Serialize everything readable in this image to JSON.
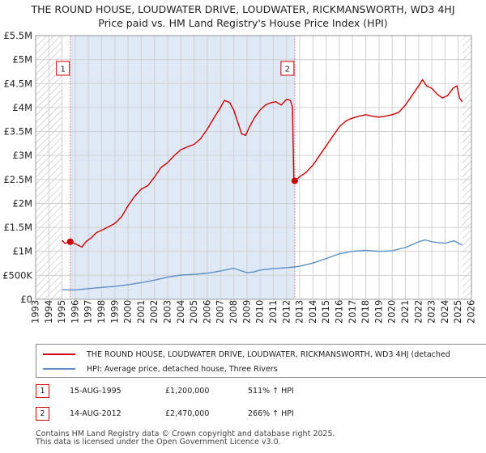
{
  "title_line1": "THE ROUND HOUSE, LOUDWATER DRIVE, LOUDWATER, RICKMANSWORTH, WD3 4HJ",
  "title_line2": "Price paid vs. HM Land Registry's House Price Index (HPI)",
  "colors": {
    "property": "#cc0000",
    "hpi": "#5b8fc8",
    "shade": "#dfe8f5",
    "hatch": "#b0b0b0",
    "marker_line": "#dd6666",
    "grid": "#d0d0d0"
  },
  "chart_data": {
    "type": "line",
    "title": "Price paid vs. HM Land Registry's House Price Index (HPI)",
    "xlim": [
      1993,
      2026
    ],
    "ylim": [
      0,
      5500000
    ],
    "x_ticks": [
      1993,
      1994,
      1995,
      1996,
      1997,
      1998,
      1999,
      2000,
      2001,
      2002,
      2003,
      2004,
      2005,
      2006,
      2007,
      2008,
      2009,
      2010,
      2011,
      2012,
      2013,
      2014,
      2015,
      2016,
      2017,
      2018,
      2019,
      2020,
      2021,
      2022,
      2023,
      2024,
      2025,
      2026
    ],
    "y_ticks": [
      {
        "value": 0,
        "label": "£0"
      },
      {
        "value": 500000,
        "label": "£500K"
      },
      {
        "value": 1000000,
        "label": "£1M"
      },
      {
        "value": 1500000,
        "label": "£1.5M"
      },
      {
        "value": 2000000,
        "label": "£2M"
      },
      {
        "value": 2500000,
        "label": "£2.5M"
      },
      {
        "value": 3000000,
        "label": "£3M"
      },
      {
        "value": 3500000,
        "label": "£3.5M"
      },
      {
        "value": 4000000,
        "label": "£4M"
      },
      {
        "value": 4500000,
        "label": "£4.5M"
      },
      {
        "value": 5000000,
        "label": "£5M"
      },
      {
        "value": 5500000,
        "label": "£5.5M"
      }
    ],
    "hatch_before": 1995.0,
    "hatch_after": 2025.3,
    "shaded_range": [
      1995.62,
      2012.62
    ],
    "series": [
      {
        "name": "THE ROUND HOUSE, LOUDWATER DRIVE, LOUDWATER, RICKMANSWORTH, WD3 4HJ (detached",
        "color_key": "property",
        "points": [
          [
            1995.0,
            1230000
          ],
          [
            1995.2,
            1170000
          ],
          [
            1995.4,
            1180000
          ],
          [
            1995.62,
            1200000
          ],
          [
            1995.9,
            1170000
          ],
          [
            1996.2,
            1130000
          ],
          [
            1996.5,
            1090000
          ],
          [
            1996.8,
            1200000
          ],
          [
            1997.2,
            1280000
          ],
          [
            1997.6,
            1390000
          ],
          [
            1998.0,
            1440000
          ],
          [
            1998.5,
            1510000
          ],
          [
            1999.0,
            1580000
          ],
          [
            1999.5,
            1720000
          ],
          [
            2000.0,
            1950000
          ],
          [
            2000.5,
            2150000
          ],
          [
            2001.0,
            2300000
          ],
          [
            2001.5,
            2370000
          ],
          [
            2002.0,
            2550000
          ],
          [
            2002.5,
            2750000
          ],
          [
            2003.0,
            2850000
          ],
          [
            2003.5,
            3000000
          ],
          [
            2004.0,
            3120000
          ],
          [
            2004.5,
            3180000
          ],
          [
            2005.0,
            3230000
          ],
          [
            2005.5,
            3350000
          ],
          [
            2006.0,
            3550000
          ],
          [
            2006.5,
            3780000
          ],
          [
            2007.0,
            4000000
          ],
          [
            2007.3,
            4150000
          ],
          [
            2007.7,
            4100000
          ],
          [
            2008.0,
            3950000
          ],
          [
            2008.3,
            3700000
          ],
          [
            2008.6,
            3450000
          ],
          [
            2008.9,
            3420000
          ],
          [
            2009.2,
            3600000
          ],
          [
            2009.6,
            3800000
          ],
          [
            2010.0,
            3950000
          ],
          [
            2010.4,
            4050000
          ],
          [
            2010.8,
            4100000
          ],
          [
            2011.2,
            4120000
          ],
          [
            2011.6,
            4050000
          ],
          [
            2012.0,
            4170000
          ],
          [
            2012.3,
            4150000
          ],
          [
            2012.45,
            4000000
          ],
          [
            2012.55,
            2550000
          ],
          [
            2012.62,
            2470000
          ],
          [
            2013.0,
            2560000
          ],
          [
            2013.5,
            2650000
          ],
          [
            2014.0,
            2800000
          ],
          [
            2014.5,
            3000000
          ],
          [
            2015.0,
            3200000
          ],
          [
            2015.5,
            3400000
          ],
          [
            2016.0,
            3600000
          ],
          [
            2016.5,
            3720000
          ],
          [
            2017.0,
            3780000
          ],
          [
            2017.5,
            3820000
          ],
          [
            2018.0,
            3850000
          ],
          [
            2018.5,
            3820000
          ],
          [
            2019.0,
            3800000
          ],
          [
            2019.5,
            3820000
          ],
          [
            2020.0,
            3850000
          ],
          [
            2020.5,
            3900000
          ],
          [
            2021.0,
            4050000
          ],
          [
            2021.5,
            4250000
          ],
          [
            2022.0,
            4450000
          ],
          [
            2022.3,
            4580000
          ],
          [
            2022.6,
            4450000
          ],
          [
            2023.0,
            4400000
          ],
          [
            2023.4,
            4280000
          ],
          [
            2023.8,
            4200000
          ],
          [
            2024.2,
            4250000
          ],
          [
            2024.6,
            4400000
          ],
          [
            2024.9,
            4450000
          ],
          [
            2025.1,
            4200000
          ],
          [
            2025.3,
            4120000
          ]
        ]
      },
      {
        "name": "HPI: Average price, detached house, Three Rivers",
        "color_key": "hpi",
        "points": [
          [
            1995.0,
            198000
          ],
          [
            1996.0,
            195000
          ],
          [
            1997.0,
            222000
          ],
          [
            1998.0,
            248000
          ],
          [
            1999.0,
            268000
          ],
          [
            2000.0,
            305000
          ],
          [
            2001.0,
            348000
          ],
          [
            2002.0,
            400000
          ],
          [
            2003.0,
            462000
          ],
          [
            2004.0,
            505000
          ],
          [
            2005.0,
            520000
          ],
          [
            2006.0,
            543000
          ],
          [
            2007.0,
            590000
          ],
          [
            2008.0,
            648000
          ],
          [
            2008.5,
            600000
          ],
          [
            2009.0,
            555000
          ],
          [
            2009.5,
            570000
          ],
          [
            2010.0,
            610000
          ],
          [
            2011.0,
            640000
          ],
          [
            2012.0,
            660000
          ],
          [
            2012.62,
            675000
          ],
          [
            2013.0,
            690000
          ],
          [
            2014.0,
            755000
          ],
          [
            2015.0,
            850000
          ],
          [
            2016.0,
            950000
          ],
          [
            2017.0,
            1000000
          ],
          [
            2018.0,
            1020000
          ],
          [
            2019.0,
            1000000
          ],
          [
            2020.0,
            1010000
          ],
          [
            2021.0,
            1080000
          ],
          [
            2022.0,
            1200000
          ],
          [
            2022.5,
            1240000
          ],
          [
            2023.0,
            1200000
          ],
          [
            2024.0,
            1170000
          ],
          [
            2024.7,
            1220000
          ],
          [
            2025.3,
            1130000
          ]
        ]
      }
    ],
    "sale_markers": [
      {
        "id": "1",
        "x": 1995.62,
        "y": 1200000
      },
      {
        "id": "2",
        "x": 2012.62,
        "y": 2470000
      }
    ],
    "legend_position": "below"
  },
  "sales": [
    {
      "id": "1",
      "date": "15-AUG-1995",
      "price": "£1,200,000",
      "hpi": "511% ↑ HPI"
    },
    {
      "id": "2",
      "date": "14-AUG-2012",
      "price": "£2,470,000",
      "hpi": "266% ↑ HPI"
    }
  ],
  "footer_line1": "Contains HM Land Registry data © Crown copyright and database right 2025.",
  "footer_line2": "This data is licensed under the Open Government Licence v3.0."
}
